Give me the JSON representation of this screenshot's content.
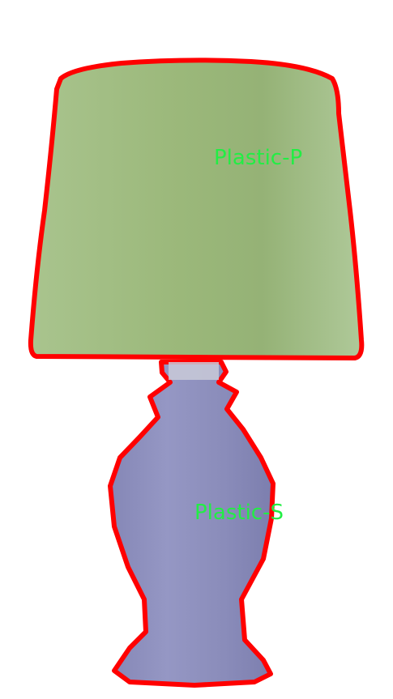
{
  "image": {
    "subject": "table lamp",
    "background": "#ffffff"
  },
  "segments": [
    {
      "id": "shade",
      "label": "Plastic-P",
      "fill": "#a3bf86",
      "outline": "#ff0000",
      "label_color": "#22ee44"
    },
    {
      "id": "base",
      "label": "Plastic-S",
      "fill": "#8e90bc",
      "outline": "#ff0000",
      "label_color": "#22ee44"
    }
  ]
}
